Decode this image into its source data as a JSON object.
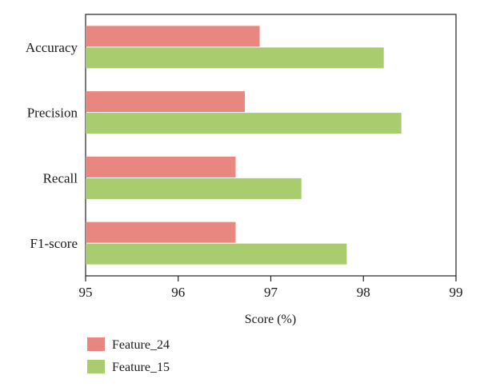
{
  "chart_data": {
    "type": "bar",
    "orientation": "horizontal",
    "categories": [
      "Accuracy",
      "Precision",
      "Recall",
      "F1-score"
    ],
    "series": [
      {
        "name": "Feature_24",
        "color": "#e8877f",
        "values": [
          96.88,
          96.72,
          96.62,
          96.62
        ]
      },
      {
        "name": "Feature_15",
        "color": "#a8cc6e",
        "values": [
          98.22,
          98.41,
          97.33,
          97.82
        ]
      }
    ],
    "xlabel": "Score (%)",
    "ylabel": "",
    "xlim": [
      95,
      99
    ],
    "xticks": [
      "95",
      "96",
      "97",
      "98",
      "99"
    ],
    "grid": false,
    "legend_position": "bottom-left"
  }
}
